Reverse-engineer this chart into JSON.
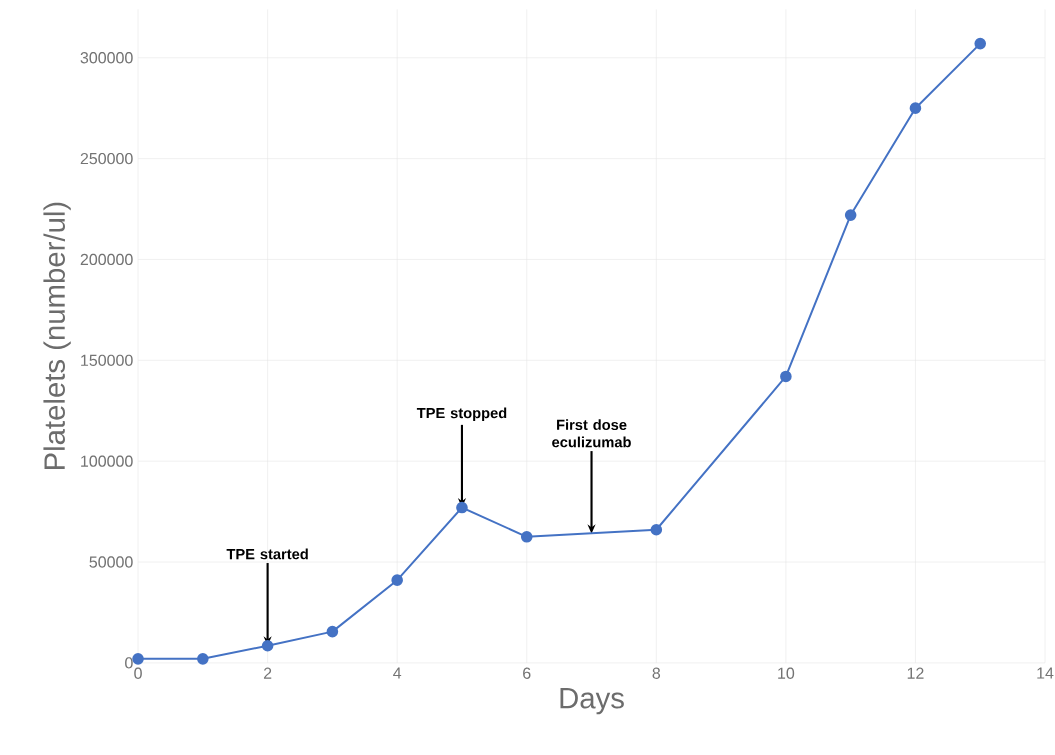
{
  "chart_data": {
    "type": "line",
    "xlabel": "Days",
    "ylabel": "Platelets  (number/ul)",
    "x": [
      0,
      1,
      2,
      3,
      4,
      5,
      6,
      8,
      10,
      11,
      12,
      13
    ],
    "values": [
      2000,
      2000,
      8500,
      15500,
      41000,
      77000,
      62500,
      66000,
      142000,
      222000,
      275000,
      307000
    ],
    "color": "#4472c4",
    "marker": "circle",
    "grid": true,
    "xlim": [
      0,
      14
    ],
    "ylim": [
      0,
      324000
    ],
    "xticks": [
      0,
      2,
      4,
      6,
      8,
      10,
      12,
      14
    ],
    "yticks": [
      0,
      50000,
      100000,
      150000,
      200000,
      250000,
      300000
    ],
    "annotations": [
      {
        "text": "TPE started",
        "x": 2,
        "y": 8500
      },
      {
        "text": "TPE stopped",
        "x": 5,
        "y": 77000
      },
      {
        "text": "First dose eculizumab",
        "x": 7,
        "y": 64000
      }
    ]
  }
}
